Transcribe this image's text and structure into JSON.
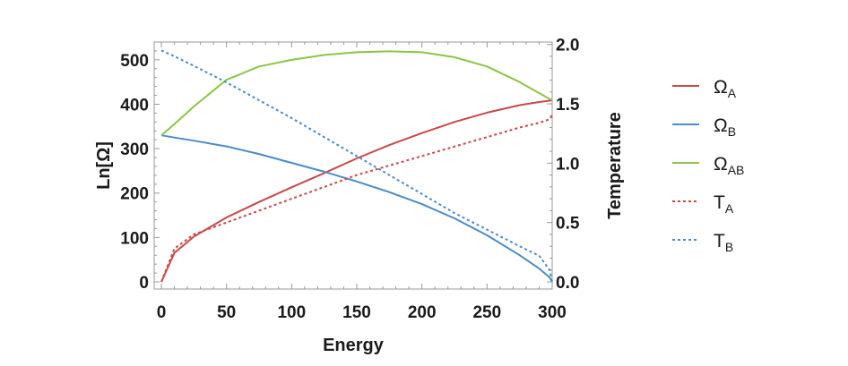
{
  "chart_data": {
    "type": "line",
    "xlabel": "Energy",
    "ylabel_left": "Ln[Ω]",
    "ylabel_right": "Temperature",
    "xlim": [
      0,
      300
    ],
    "ylim_left": [
      0,
      540
    ],
    "ylim_right": [
      0,
      2.0
    ],
    "x_ticks": [
      "0",
      "50",
      "100",
      "150",
      "200",
      "250",
      "300"
    ],
    "y_left_ticks": [
      "0",
      "100",
      "200",
      "300",
      "400",
      "500"
    ],
    "y_right_ticks": [
      "0.0",
      "0.5",
      "1.0",
      "1.5",
      "2.0"
    ],
    "x": [
      0,
      10,
      25,
      50,
      75,
      100,
      125,
      150,
      175,
      200,
      225,
      250,
      275,
      290,
      298,
      300
    ],
    "series": [
      {
        "name": "Ω_A",
        "base": "Ω",
        "sub": "A",
        "axis": "left",
        "style": "solid",
        "color": "#c8494a",
        "values": [
          0,
          65,
          102,
          145,
          180,
          213,
          245,
          278,
          308,
          335,
          360,
          381,
          398,
          405,
          408,
          409
        ]
      },
      {
        "name": "Ω_B",
        "base": "Ω",
        "sub": "B",
        "axis": "left",
        "style": "solid",
        "color": "#4b8bc7",
        "values": [
          330,
          325,
          318,
          305,
          288,
          268,
          248,
          226,
          202,
          175,
          143,
          105,
          60,
          30,
          10,
          0
        ]
      },
      {
        "name": "Ω_AB",
        "base": "Ω",
        "sub": "AB",
        "axis": "left",
        "style": "solid",
        "color": "#8cc546",
        "values": [
          330,
          355,
          395,
          455,
          485,
          500,
          511,
          517,
          519,
          517,
          506,
          485,
          450,
          425,
          412,
          409
        ]
      },
      {
        "name": "T_A",
        "base": "T",
        "sub": "A",
        "axis": "right",
        "style": "dashed",
        "color": "#c8494a",
        "values": [
          0,
          0.28,
          0.4,
          0.5,
          0.6,
          0.7,
          0.8,
          0.9,
          0.98,
          1.06,
          1.14,
          1.22,
          1.3,
          1.34,
          1.37,
          1.4
        ]
      },
      {
        "name": "T_B",
        "base": "T",
        "sub": "B",
        "axis": "right",
        "style": "dashed",
        "color": "#4b8bc7",
        "values": [
          1.95,
          1.9,
          1.82,
          1.68,
          1.53,
          1.38,
          1.22,
          1.06,
          0.9,
          0.74,
          0.58,
          0.44,
          0.3,
          0.22,
          0.1,
          0
        ]
      }
    ],
    "legend": [
      "Ω_A",
      "Ω_B",
      "Ω_AB",
      "T_A",
      "T_B"
    ],
    "legend_position": "right",
    "grid": false
  }
}
